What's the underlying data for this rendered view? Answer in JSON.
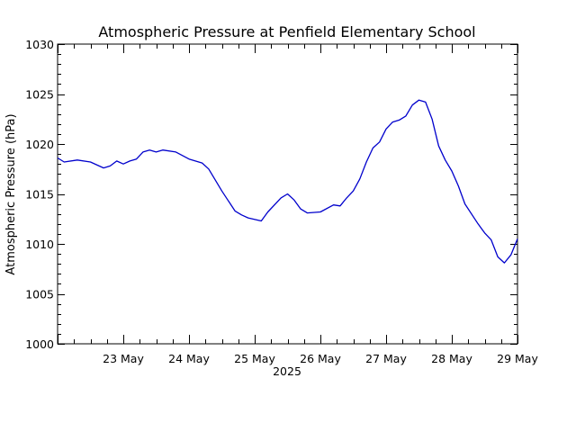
{
  "chart_data": {
    "type": "line",
    "title": "Atmospheric Pressure at Penfield Elementary School",
    "ylabel": "Atmospheric Pressure (hPa)",
    "xlabel": "2025",
    "ylim": [
      1000,
      1030
    ],
    "yticks": [
      1000,
      1005,
      1010,
      1015,
      1020,
      1025,
      1030
    ],
    "xlim": [
      "22 May 00:00",
      "29 May 00:00"
    ],
    "xtick_labels": [
      "23 May",
      "24 May",
      "25 May",
      "26 May",
      "27 May",
      "28 May",
      "29 May"
    ],
    "grid": false,
    "colors": {
      "line": "#0000cc",
      "axes": "#000000"
    },
    "series": [
      {
        "x_days": [
          0.0,
          0.1,
          0.3,
          0.5,
          0.7,
          0.8,
          0.9,
          1.0,
          1.1,
          1.2,
          1.3,
          1.4,
          1.5,
          1.6,
          1.8,
          2.0,
          2.2,
          2.3,
          2.5,
          2.7,
          2.8,
          2.9,
          3.1,
          3.2,
          3.4,
          3.5,
          3.6,
          3.7,
          3.8,
          4.0,
          4.2,
          4.3,
          4.4,
          4.5,
          4.6,
          4.7,
          4.8,
          4.9,
          5.0,
          5.1,
          5.2,
          5.3,
          5.4,
          5.5,
          5.6,
          5.7,
          5.8,
          5.9,
          6.0,
          6.1,
          6.2,
          6.4,
          6.5,
          6.6,
          6.7,
          6.8,
          6.9,
          7.0
        ],
        "values": [
          1018.6,
          1018.2,
          1018.4,
          1018.2,
          1017.6,
          1017.8,
          1018.3,
          1018.0,
          1018.3,
          1018.5,
          1019.2,
          1019.4,
          1019.2,
          1019.4,
          1019.2,
          1018.5,
          1018.1,
          1017.5,
          1015.3,
          1013.3,
          1012.9,
          1012.6,
          1012.3,
          1013.2,
          1014.6,
          1015.0,
          1014.4,
          1013.5,
          1013.1,
          1013.2,
          1013.9,
          1013.8,
          1014.6,
          1015.3,
          1016.5,
          1018.2,
          1019.6,
          1020.2,
          1021.5,
          1022.2,
          1022.4,
          1022.8,
          1023.9,
          1024.4,
          1024.2,
          1022.5,
          1019.8,
          1018.4,
          1017.3,
          1015.8,
          1014.0,
          1012.0,
          1011.1,
          1010.4,
          1008.7,
          1008.1,
          1008.9,
          1010.5
        ]
      }
    ]
  }
}
